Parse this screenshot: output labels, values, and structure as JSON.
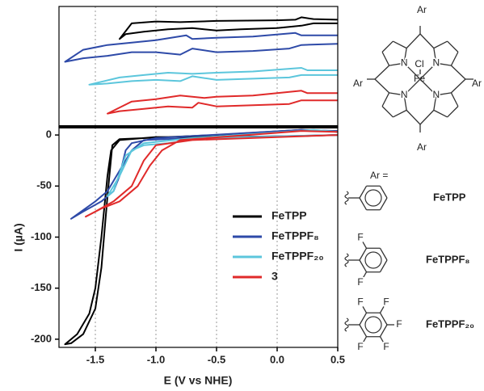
{
  "chart_data": [
    {
      "type": "line",
      "role": "inset",
      "ylim": [
        0,
        10
      ],
      "series": [
        {
          "color": "#000000",
          "x": [
            0.5,
            0.3,
            0.2,
            0.15,
            0,
            -0.5,
            -0.8,
            -1.0,
            -1.2,
            -1.3,
            -1.25,
            -1.1,
            -0.9,
            -0.7,
            -0.5,
            -0.3,
            0,
            0.2,
            0.3,
            0.5
          ],
          "values": [
            8.9,
            8.95,
            9.1,
            8.9,
            8.85,
            8.8,
            8.7,
            8.75,
            8.6,
            7.3,
            7.7,
            7.9,
            8.1,
            8.2,
            8.0,
            8.1,
            8.2,
            8.4,
            8.6,
            8.6
          ]
        },
        {
          "color": "#2e4aa8",
          "x": [
            0.5,
            0.2,
            0.15,
            -0.2,
            -0.5,
            -0.7,
            -0.75,
            -1.0,
            -1.2,
            -1.4,
            -1.6,
            -1.75,
            -1.6,
            -1.4,
            -1.2,
            -1.0,
            -0.8,
            -0.7,
            -0.5,
            -0.2,
            0.1,
            0.2,
            0.5
          ],
          "values": [
            7.6,
            7.6,
            7.8,
            7.5,
            7.4,
            7.3,
            7.6,
            7.2,
            7.0,
            6.8,
            6.4,
            5.4,
            5.7,
            5.9,
            6.2,
            6.2,
            6.0,
            6.5,
            6.2,
            6.3,
            6.5,
            6.8,
            6.9
          ]
        },
        {
          "color": "#5cc6dc",
          "x": [
            0.5,
            0.25,
            0.2,
            -0.2,
            -0.5,
            -0.7,
            -0.9,
            -1.1,
            -1.3,
            -1.55,
            -1.4,
            -1.2,
            -1.0,
            -0.8,
            -0.7,
            -0.5,
            -0.2,
            0.1,
            0.2,
            0.5
          ],
          "values": [
            4.7,
            4.7,
            4.9,
            4.6,
            4.5,
            4.4,
            4.5,
            4.3,
            4.1,
            3.5,
            3.6,
            3.8,
            3.9,
            3.8,
            4.2,
            3.9,
            4.0,
            4.1,
            4.3,
            4.3
          ]
        },
        {
          "color": "#e02a2a",
          "x": [
            0.5,
            0.25,
            0.2,
            -0.2,
            -0.5,
            -0.6,
            -0.8,
            -1.0,
            -1.2,
            -1.4,
            -1.3,
            -1.1,
            -0.9,
            -0.7,
            -0.65,
            -0.5,
            -0.2,
            0.1,
            0.2,
            0.5
          ],
          "values": [
            2.8,
            2.8,
            3.0,
            2.6,
            2.5,
            2.4,
            2.6,
            2.3,
            2.1,
            1.1,
            1.3,
            1.5,
            1.7,
            1.6,
            2.0,
            1.7,
            1.8,
            1.9,
            2.2,
            2.2
          ]
        }
      ]
    },
    {
      "type": "line",
      "role": "main",
      "x_label": "E (V vs NHE)",
      "y_label": "I (µA)",
      "xlim": [
        -1.8,
        0.5
      ],
      "ylim": [
        -208,
        8
      ],
      "xticks": [
        -1.5,
        {
          "value": -1,
          "label": "-1.0"
        },
        -0.5,
        {
          "value": 0,
          "label": "0.0"
        },
        0.5
      ],
      "yticks": [
        0,
        -50,
        -100,
        -150,
        -200
      ],
      "grid": "x",
      "legend": "center right",
      "series": [
        {
          "name": "FeTPP",
          "color": "#000000",
          "x": [
            0.5,
            0.2,
            -0.5,
            -1.0,
            -1.3,
            -1.37,
            -1.4,
            -1.45,
            -1.5,
            -1.55,
            -1.65,
            -1.75,
            -1.7,
            -1.6,
            -1.5,
            -1.45,
            -1.4,
            -1.36,
            -1.3,
            -0.5,
            0.2,
            0.5
          ],
          "values": [
            0,
            -1,
            -2,
            -2,
            -5,
            -15,
            -40,
            -100,
            -150,
            -175,
            -195,
            -205,
            -204,
            -195,
            -170,
            -130,
            -60,
            -10,
            -4,
            0,
            5,
            3
          ]
        },
        {
          "name": "FeTPPF₈",
          "color": "#2e4aa8",
          "x": [
            0.5,
            -0.7,
            -1.1,
            -1.2,
            -1.3,
            -1.4,
            -1.5,
            -1.7,
            -1.6,
            -1.45,
            -1.35,
            -1.3,
            -1.25,
            -1.2,
            -1.0,
            0.2,
            0.5
          ],
          "values": [
            0,
            -3,
            -5,
            -15,
            -35,
            -55,
            -65,
            -82,
            -75,
            -65,
            -55,
            -40,
            -15,
            -8,
            -3,
            5,
            4
          ]
        },
        {
          "name": "FeTPPF₂₀",
          "color": "#5cc6dc",
          "x": [
            0.5,
            -0.6,
            -0.9,
            -1.1,
            -1.2,
            -1.3,
            -1.4,
            -1.35,
            -1.25,
            -1.1,
            -0.7,
            0.3,
            0.5
          ],
          "values": [
            0,
            -3,
            -8,
            -10,
            -15,
            -40,
            -60,
            -55,
            -20,
            -8,
            -3,
            5,
            3
          ]
        },
        {
          "name": "3",
          "color": "#e02a2a",
          "x": [
            0.5,
            -0.7,
            -1.0,
            -1.1,
            -1.2,
            -1.35,
            -1.5,
            -1.58,
            -1.45,
            -1.3,
            -1.15,
            -1.05,
            -0.95,
            -0.8,
            0.2,
            0.5
          ],
          "values": [
            0,
            -5,
            -10,
            -25,
            -50,
            -65,
            -75,
            -80,
            -72,
            -65,
            -50,
            -30,
            -15,
            -5,
            4,
            3
          ]
        }
      ]
    }
  ],
  "structure": {
    "ar_labels": [
      "Ar",
      "Ar",
      "Ar",
      "Ar"
    ],
    "n_labels": [
      "N",
      "N",
      "N",
      "N"
    ],
    "cl": "Cl",
    "fe": "Fe",
    "ar_equals": "Ar ="
  },
  "substituents": [
    {
      "name": "FeTPP"
    },
    {
      "name": "FeTPPF₈",
      "f_labels": [
        "F",
        "F"
      ]
    },
    {
      "name": "FeTPPF₂₀",
      "f_labels": [
        "F",
        "F",
        "F",
        "F",
        "F"
      ]
    }
  ]
}
